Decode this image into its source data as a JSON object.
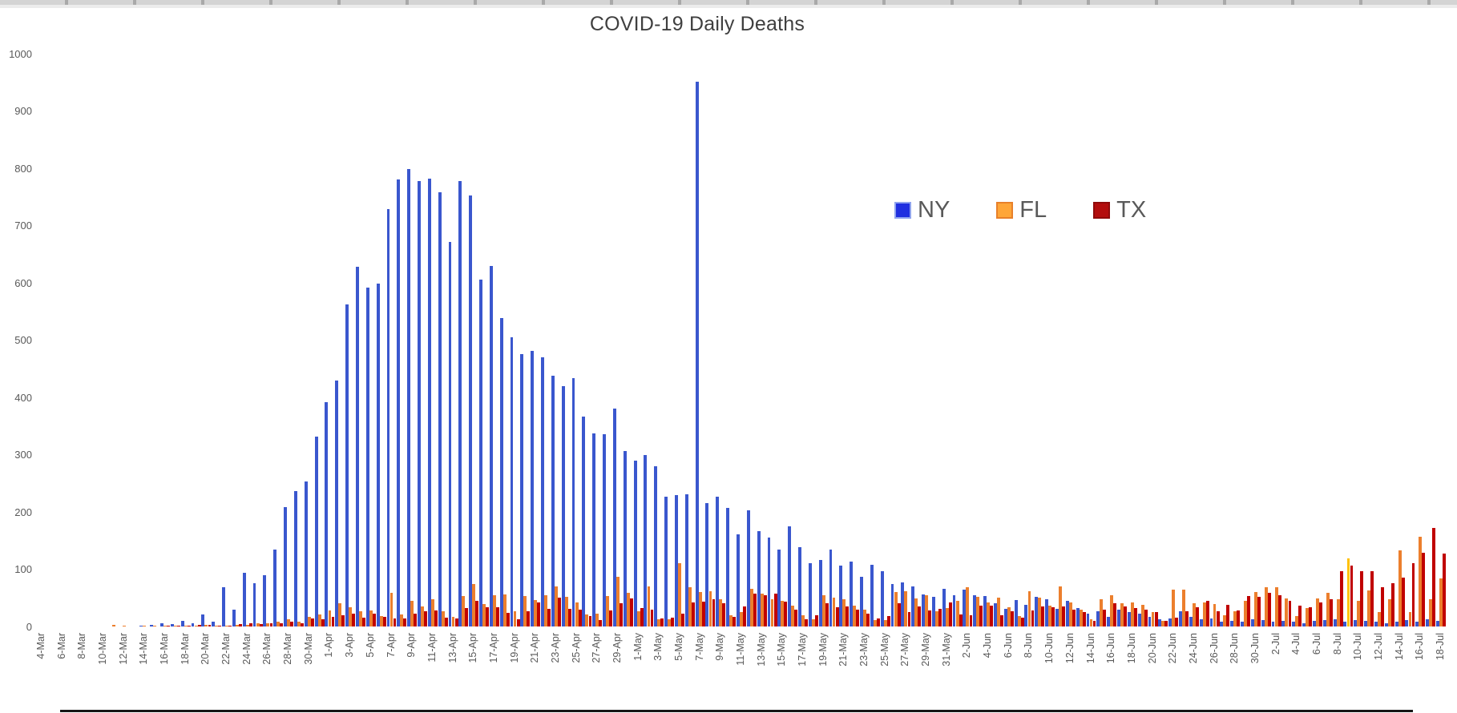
{
  "window": {
    "top_strip_color": "#d4d4d4"
  },
  "chart": {
    "title": "COVID-19 Daily Deaths",
    "legend": [
      {
        "label": "NY",
        "fill": "#1f2fe0",
        "border": "#8fa3ee"
      },
      {
        "label": "FL",
        "fill": "#ffa638",
        "border": "#e8802a"
      },
      {
        "label": "TX",
        "fill": "#b30d0d",
        "border": "#8f0a0a"
      }
    ],
    "text_color": "#595959",
    "title_color": "#3f3f3f"
  },
  "chart_data": {
    "type": "bar",
    "title": "COVID-19 Daily Deaths",
    "xlabel": "",
    "ylabel": "",
    "ylim": [
      0,
      1000
    ],
    "ytick_step": 100,
    "yticks": [
      "0",
      "100",
      "200",
      "300",
      "400",
      "500",
      "600",
      "700",
      "800",
      "900",
      "1000"
    ],
    "xtick_every": 2,
    "grid": false,
    "legend_position": "center-right",
    "highlight": {
      "series": "FL",
      "category": "9-Jul",
      "color": "#ffc107"
    },
    "categories": [
      "4-Mar",
      "5-Mar",
      "6-Mar",
      "7-Mar",
      "8-Mar",
      "9-Mar",
      "10-Mar",
      "11-Mar",
      "12-Mar",
      "13-Mar",
      "14-Mar",
      "15-Mar",
      "16-Mar",
      "17-Mar",
      "18-Mar",
      "19-Mar",
      "20-Mar",
      "21-Mar",
      "22-Mar",
      "23-Mar",
      "24-Mar",
      "25-Mar",
      "26-Mar",
      "27-Mar",
      "28-Mar",
      "29-Mar",
      "30-Mar",
      "31-Mar",
      "1-Apr",
      "2-Apr",
      "3-Apr",
      "4-Apr",
      "5-Apr",
      "6-Apr",
      "7-Apr",
      "8-Apr",
      "9-Apr",
      "10-Apr",
      "11-Apr",
      "12-Apr",
      "13-Apr",
      "14-Apr",
      "15-Apr",
      "16-Apr",
      "17-Apr",
      "18-Apr",
      "19-Apr",
      "20-Apr",
      "21-Apr",
      "22-Apr",
      "23-Apr",
      "24-Apr",
      "25-Apr",
      "26-Apr",
      "27-Apr",
      "28-Apr",
      "29-Apr",
      "30-Apr",
      "1-May",
      "2-May",
      "3-May",
      "4-May",
      "5-May",
      "6-May",
      "7-May",
      "8-May",
      "9-May",
      "10-May",
      "11-May",
      "12-May",
      "13-May",
      "14-May",
      "15-May",
      "16-May",
      "17-May",
      "18-May",
      "19-May",
      "20-May",
      "21-May",
      "22-May",
      "23-May",
      "24-May",
      "25-May",
      "26-May",
      "27-May",
      "28-May",
      "29-May",
      "30-May",
      "31-May",
      "1-Jun",
      "2-Jun",
      "3-Jun",
      "4-Jun",
      "5-Jun",
      "6-Jun",
      "7-Jun",
      "8-Jun",
      "9-Jun",
      "10-Jun",
      "11-Jun",
      "12-Jun",
      "13-Jun",
      "14-Jun",
      "15-Jun",
      "16-Jun",
      "17-Jun",
      "18-Jun",
      "19-Jun",
      "20-Jun",
      "21-Jun",
      "22-Jun",
      "23-Jun",
      "24-Jun",
      "25-Jun",
      "26-Jun",
      "27-Jun",
      "28-Jun",
      "29-Jun",
      "30-Jun",
      "1-Jul",
      "2-Jul",
      "3-Jul",
      "4-Jul",
      "5-Jul",
      "6-Jul",
      "7-Jul",
      "8-Jul",
      "9-Jul",
      "10-Jul",
      "11-Jul",
      "12-Jul",
      "13-Jul",
      "14-Jul",
      "15-Jul",
      "16-Jul",
      "17-Jul",
      "18-Jul"
    ],
    "series": [
      {
        "name": "NY",
        "color": "#3a57ce",
        "values": [
          0,
          0,
          0,
          0,
          0,
          0,
          0,
          0,
          0,
          0,
          1,
          3,
          6,
          4,
          10,
          5,
          21,
          9,
          69,
          30,
          94,
          75,
          90,
          134,
          209,
          237,
          253,
          332,
          391,
          429,
          562,
          628,
          591,
          598,
          729,
          780,
          799,
          777,
          782,
          758,
          671,
          777,
          752,
          605,
          629,
          539,
          505,
          476,
          481,
          470,
          438,
          420,
          434,
          367,
          337,
          335,
          380,
          306,
          289,
          299,
          280,
          226,
          229,
          231,
          951,
          216,
          227,
          207,
          161,
          203,
          166,
          155,
          134,
          175,
          139,
          110,
          116,
          134,
          106,
          113,
          87,
          108,
          96,
          74,
          77,
          70,
          56,
          52,
          66,
          55,
          64,
          54,
          53,
          41,
          31,
          46,
          38,
          52,
          47,
          31,
          45,
          32,
          23,
          26,
          17,
          29,
          25,
          23,
          17,
          12,
          14,
          27,
          17,
          12,
          14,
          8,
          10,
          8,
          13,
          11,
          9,
          10,
          9,
          5,
          10,
          11,
          12,
          9,
          11,
          10,
          8,
          6,
          9,
          11,
          8,
          12,
          10
        ]
      },
      {
        "name": "FL",
        "color": "#ec7f2d",
        "values": [
          0,
          0,
          0,
          0,
          0,
          0,
          0,
          3,
          2,
          0,
          2,
          2,
          2,
          2,
          2,
          2,
          3,
          2,
          2,
          3,
          3,
          5,
          6,
          9,
          12,
          9,
          17,
          21,
          28,
          40,
          34,
          26,
          28,
          18,
          59,
          21,
          45,
          35,
          47,
          26,
          17,
          53,
          74,
          39,
          54,
          56,
          27,
          53,
          46,
          55,
          70,
          52,
          42,
          21,
          23,
          53,
          87,
          59,
          26,
          70,
          12,
          13,
          111,
          69,
          60,
          61,
          47,
          20,
          25,
          66,
          57,
          48,
          45,
          36,
          20,
          12,
          55,
          50,
          47,
          36,
          30,
          11,
          11,
          60,
          61,
          49,
          55,
          26,
          32,
          45,
          68,
          52,
          42,
          50,
          33,
          18,
          62,
          50,
          36,
          70,
          42,
          30,
          12,
          48,
          55,
          40,
          42,
          38,
          25,
          10,
          65,
          65,
          40,
          42,
          39,
          20,
          26,
          45,
          60,
          68,
          68,
          49,
          18,
          32,
          49,
          59,
          47,
          119,
          45,
          63,
          25,
          47,
          133,
          25,
          156,
          48,
          84
        ]
      },
      {
        "name": "TX",
        "color": "#c00000",
        "values": [
          0,
          0,
          0,
          0,
          0,
          0,
          0,
          0,
          0,
          0,
          0,
          0,
          1,
          2,
          2,
          3,
          3,
          2,
          2,
          4,
          5,
          4,
          6,
          5,
          8,
          6,
          14,
          12,
          17,
          19,
          22,
          15,
          22,
          17,
          14,
          14,
          22,
          26,
          28,
          15,
          14,
          32,
          45,
          34,
          33,
          24,
          13,
          27,
          42,
          31,
          50,
          31,
          30,
          18,
          11,
          28,
          41,
          49,
          32,
          30,
          14,
          16,
          23,
          42,
          44,
          47,
          40,
          17,
          35,
          57,
          55,
          58,
          44,
          30,
          13,
          20,
          40,
          34,
          35,
          30,
          22,
          14,
          18,
          40,
          25,
          35,
          28,
          31,
          42,
          21,
          20,
          36,
          36,
          19,
          27,
          15,
          28,
          35,
          33,
          35,
          30,
          25,
          10,
          30,
          40,
          35,
          32,
          30,
          25,
          10,
          15,
          27,
          33,
          45,
          26,
          38,
          28,
          53,
          52,
          59,
          54,
          45,
          36,
          34,
          42,
          47,
          97,
          106,
          96,
          97,
          68,
          75,
          85,
          110,
          129,
          172,
          127
        ]
      }
    ]
  }
}
